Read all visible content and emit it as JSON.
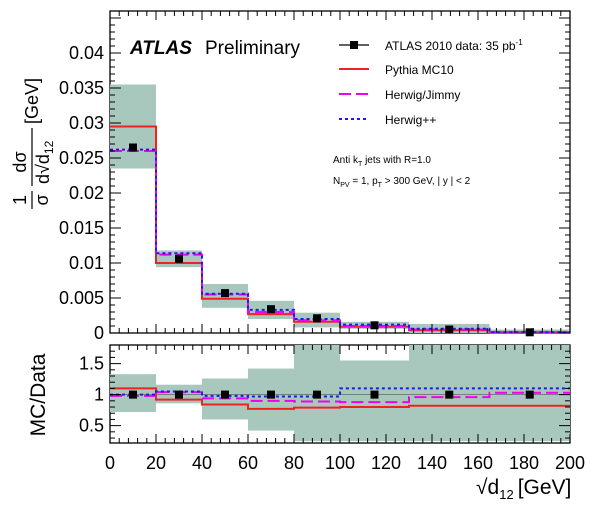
{
  "chart_data": {
    "type": "histogram",
    "x": {
      "label": "√d",
      "label_sub": "12",
      "label_unit": "[GeV]",
      "lim": [
        0,
        200
      ],
      "ticks": [
        "0",
        "20",
        "40",
        "60",
        "80",
        "100",
        "120",
        "140",
        "160",
        "180",
        "200"
      ],
      "bin_edges": [
        0,
        20,
        40,
        60,
        80,
        100,
        130,
        165,
        200
      ]
    },
    "main_panel": {
      "ylabel_frac_num": "1",
      "ylabel_frac_den": "σ",
      "ylabel_deriv_num": "dσ",
      "ylabel_deriv_den": "d√d",
      "ylabel_deriv_sub": "12",
      "ylabel_unit": "[GeV]",
      "ylim": [
        0,
        0.046
      ],
      "yticks": [
        "0",
        "0.005",
        "0.01",
        "0.015",
        "0.02",
        "0.025",
        "0.03",
        "0.035",
        "0.04"
      ],
      "data": {
        "name": "ATLAS 2010 data:  35 pb",
        "name_sup": "-1",
        "x": [
          10,
          30,
          50,
          70,
          90,
          115,
          147.5,
          182.5
        ],
        "y": [
          0.0265,
          0.0106,
          0.0057,
          0.0034,
          0.0021,
          0.0011,
          0.0005,
          0.0001
        ],
        "band_low": [
          0.0235,
          0.0094,
          0.0036,
          0.002,
          0.0008,
          0.0006,
          0.0,
          0.0
        ],
        "band_high": [
          0.0355,
          0.0118,
          0.007,
          0.0046,
          0.0029,
          0.0016,
          0.0013,
          0.0005
        ]
      },
      "series": [
        {
          "name": "Pythia MC10",
          "color": "#ee2222",
          "dash": "solid",
          "values": [
            0.0295,
            0.01,
            0.0049,
            0.0027,
            0.0016,
            0.0009,
            0.0004,
            0.0001
          ]
        },
        {
          "name": "Herwig/Jimmy",
          "color": "#ee00ee",
          "dash": "long",
          "values": [
            0.026,
            0.0112,
            0.0055,
            0.003,
            0.0018,
            0.001,
            0.0005,
            0.0001
          ]
        },
        {
          "name": "Herwig++",
          "color": "#1a1aee",
          "dash": "dotted",
          "values": [
            0.0262,
            0.0114,
            0.0056,
            0.0033,
            0.002,
            0.0012,
            0.0006,
            0.0001
          ]
        }
      ]
    },
    "ratio_panel": {
      "ylabel": "MC/Data",
      "ylim": [
        0.22,
        1.8
      ],
      "yticks": [
        "0.5",
        "1",
        "1.5"
      ],
      "band_low": [
        0.72,
        0.86,
        0.6,
        0.42,
        0.25,
        0.25,
        0.25,
        0.25
      ],
      "band_high": [
        1.33,
        1.16,
        1.26,
        1.42,
        1.8,
        1.55,
        1.8,
        1.8
      ],
      "series": [
        {
          "name": "Pythia MC10",
          "values": [
            1.1,
            0.92,
            0.84,
            0.77,
            0.79,
            0.8,
            0.82,
            0.82
          ]
        },
        {
          "name": "Herwig/Jimmy",
          "values": [
            0.98,
            1.04,
            0.94,
            0.9,
            0.89,
            0.88,
            0.96,
            1.03
          ]
        },
        {
          "name": "Herwig++",
          "values": [
            1.0,
            1.05,
            0.98,
            0.97,
            0.97,
            1.1,
            1.1,
            1.1
          ]
        }
      ]
    },
    "annotations": {
      "atlas": "ATLAS",
      "preliminary": "Preliminary",
      "line1_pre": "Anti k",
      "line1_sub": "T",
      "line1_post": " jets with R=1.0",
      "line2_pre": "N",
      "line2_sub1": "PV",
      "line2_mid": " = 1, p",
      "line2_sub2": "T",
      "line2_post": " > 300 GeV, | y | < 2"
    },
    "legend_position": "top-right"
  }
}
